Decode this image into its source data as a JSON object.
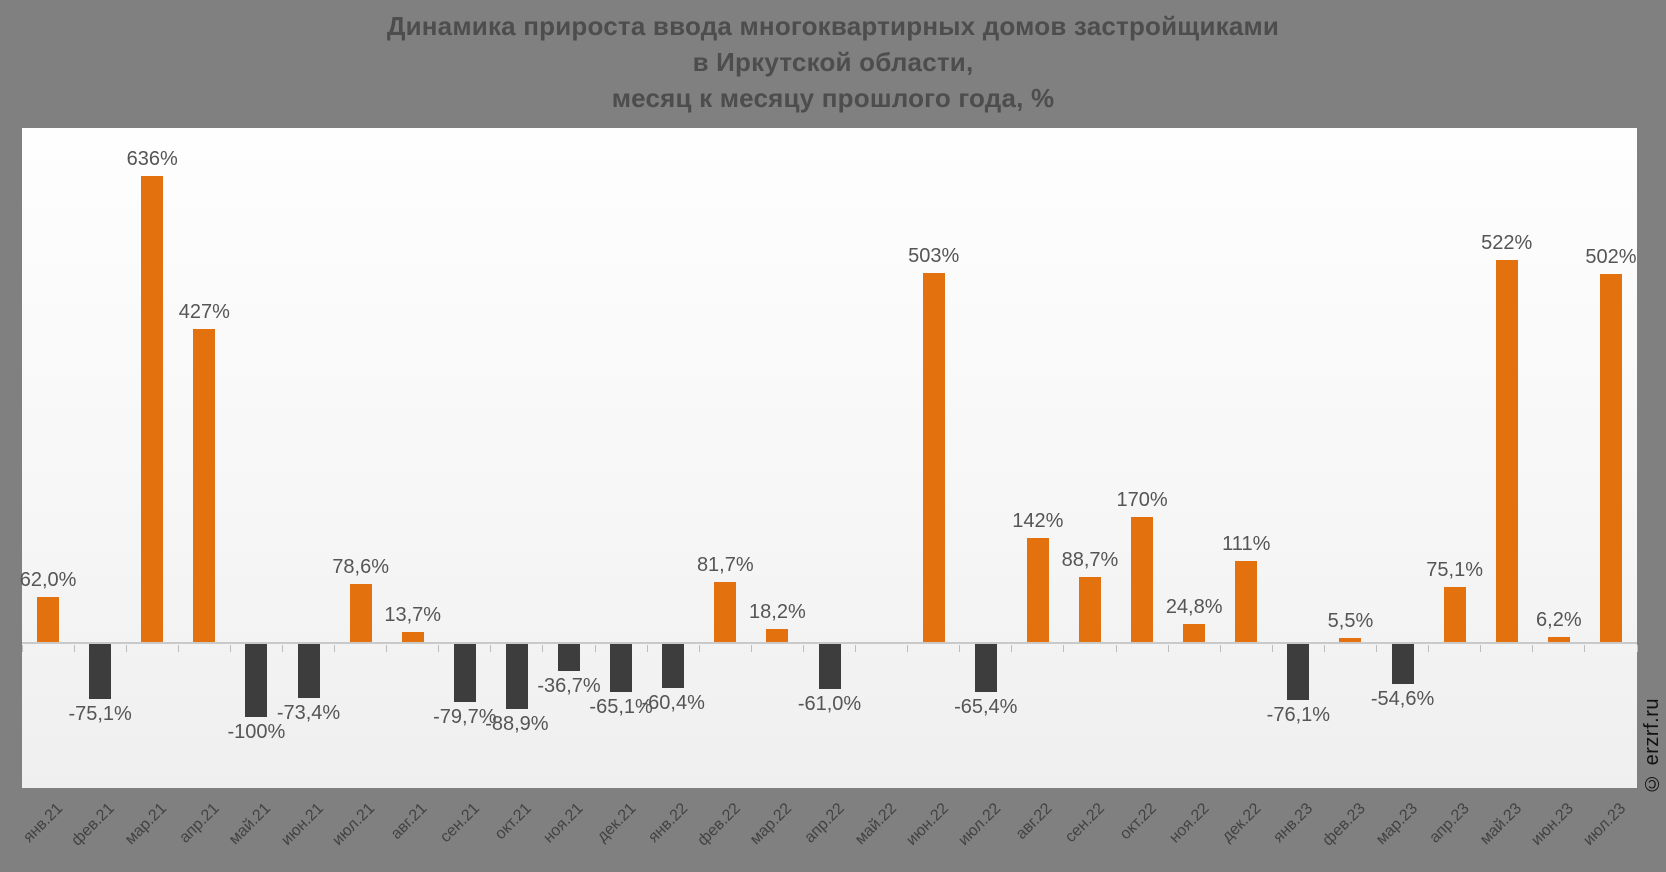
{
  "watermark": "© erzrf.ru",
  "chart_data": {
    "type": "bar",
    "title": "Динамика прироста ввода многоквартирных домов застройщиками в Иркутской области, месяц к месяцу прошлого года, %",
    "title_lines": [
      "Динамика прироста ввода многоквартирных домов застройщиками",
      "в Иркутской области,",
      "месяц к месяцу прошлого года, %"
    ],
    "unit": "%",
    "xlabel": "",
    "ylabel": "",
    "ylim": [
      -200,
      700
    ],
    "grid": false,
    "legend": false,
    "categories": [
      "янв.21",
      "фев.21",
      "мар.21",
      "апр.21",
      "май.21",
      "июн.21",
      "июл.21",
      "авг.21",
      "сен.21",
      "окт.21",
      "ноя.21",
      "дек.21",
      "янв.22",
      "фев.22",
      "мар.22",
      "апр.22",
      "май.22",
      "июн.22",
      "июл.22",
      "авг.22",
      "сен.22",
      "окт.22",
      "ноя.22",
      "дек.22",
      "янв.23",
      "фев.23",
      "мар.23",
      "апр.23",
      "май.23",
      "июн.23",
      "июл.23"
    ],
    "values": [
      62.0,
      -75.1,
      636,
      427,
      -100,
      -73.4,
      78.6,
      13.7,
      -79.7,
      -88.9,
      -36.7,
      -65.1,
      -60.4,
      81.7,
      18.2,
      -61.0,
      null,
      503,
      -65.4,
      142,
      88.7,
      170,
      24.8,
      111,
      -76.1,
      5.5,
      -54.6,
      75.1,
      522,
      6.2,
      502
    ],
    "value_labels": [
      "62,0%",
      "-75,1%",
      "636%",
      "427%",
      "-100%",
      "-73,4%",
      "78,6%",
      "13,7%",
      "-79,7%",
      "-88,9%",
      "-36,7%",
      "-65,1%",
      "-60,4%",
      "81,7%",
      "18,2%",
      "-61,0%",
      "",
      "503%",
      "-65,4%",
      "142%",
      "88,7%",
      "170%",
      "24,8%",
      "111%",
      "-76,1%",
      "5,5%",
      "-54,6%",
      "75,1%",
      "522%",
      "6,2%",
      "502%"
    ],
    "colors": {
      "positive_bar": "#e2710e",
      "negative_bar": "#3d3d3d",
      "axis": "#c9c9c9",
      "page_background": "#808080",
      "panel_background": "#f7f7f7",
      "value_text": "#555555",
      "title_text": "#4d4d4d",
      "tick_label_text": "#424242",
      "watermark_text": "#111111"
    }
  }
}
